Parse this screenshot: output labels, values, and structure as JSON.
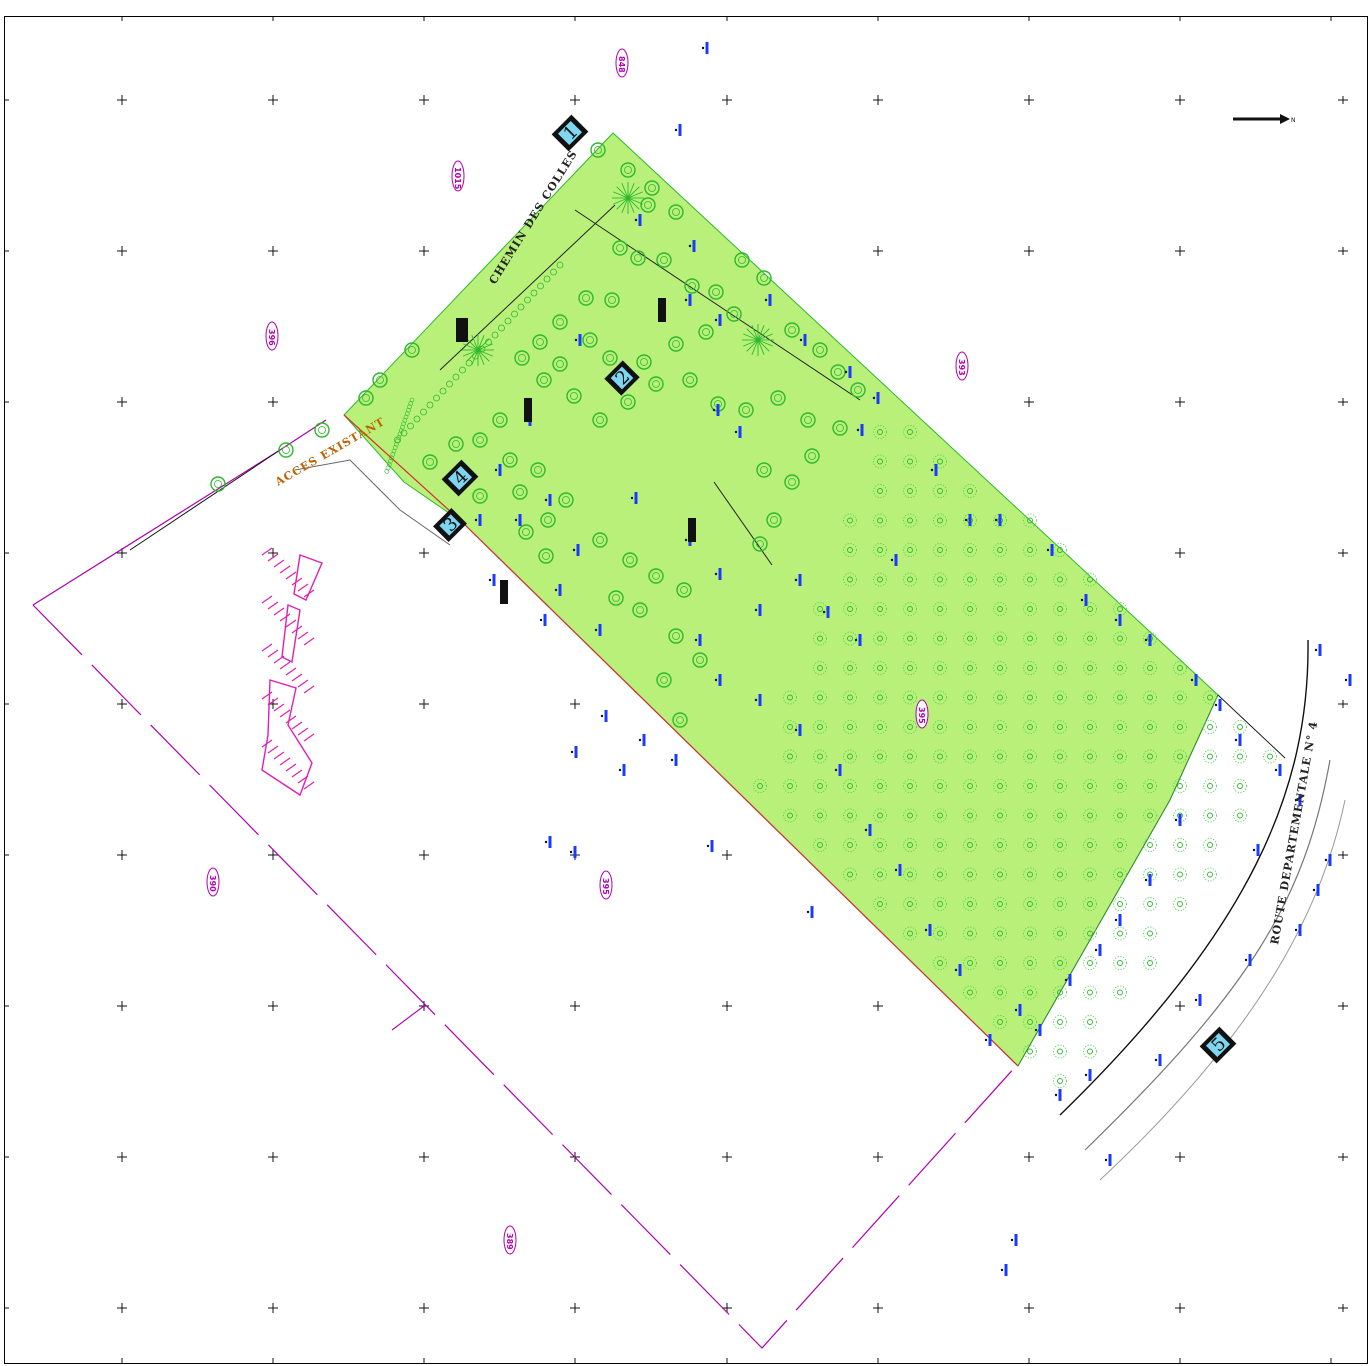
{
  "map": {
    "road_labels": {
      "chemin": "CHEMIN DES COLLES",
      "route": "ROUTE DEPARTEMENTALE N° 4",
      "acces": "ACCES EXISTANT"
    },
    "view_markers": [
      "1",
      "2",
      "3",
      "4",
      "5"
    ],
    "parcel_numbers": [
      "848",
      "1015",
      "396",
      "393",
      "395",
      "390",
      "395",
      "389"
    ],
    "north_arrow_label": "N",
    "colors": {
      "vegetation_zone": "#b8f07a",
      "tree_outline": "#2db82d",
      "parcel_boundary": "#b000b0",
      "property_edge": "#d03030",
      "annotation_blue": "#1a3cff"
    }
  }
}
